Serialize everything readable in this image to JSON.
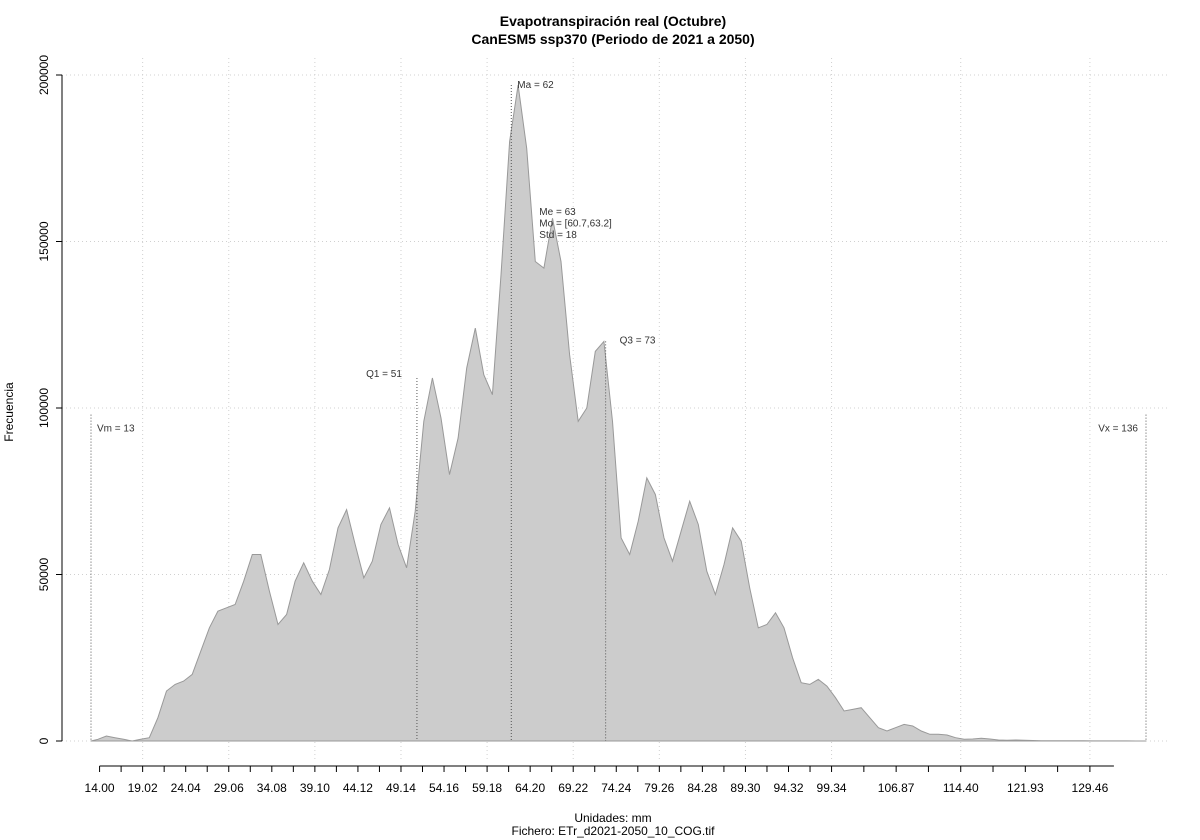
{
  "title": "Evapotranspiración real (Octubre)",
  "subtitle": "CanESM5 ssp370 (Periodo de 2021 a 2050)",
  "chart_data": {
    "type": "area",
    "title": "Evapotranspiración real (Octubre)",
    "subtitle": "CanESM5 ssp370 (Periodo de 2021 a 2050)",
    "xlabel": "Unidades: mm",
    "file_label": "Fichero: ETr_d2021-2050_10_COG.tif",
    "ylabel": "Frecuencia",
    "xlim": [
      12.0,
      137.0
    ],
    "ylim": [
      0,
      200000
    ],
    "grid": true,
    "fill_color": "#cccccc",
    "line_color": "#999999",
    "x_tick_values": [
      14.0,
      19.02,
      24.04,
      29.06,
      34.08,
      39.1,
      44.12,
      49.14,
      54.16,
      59.18,
      64.2,
      69.22,
      74.24,
      79.26,
      84.28,
      89.3,
      94.32,
      99.34,
      106.87,
      114.4,
      121.93,
      129.46
    ],
    "x_tick_labels": [
      "14.00",
      "19.02",
      "24.04",
      "29.06",
      "34.08",
      "39.10",
      "44.12",
      "49.14",
      "54.16",
      "59.18",
      "64.20",
      "69.22",
      "74.24",
      "79.26",
      "84.28",
      "89.30",
      "94.32",
      "99.34",
      "106.87",
      "114.40",
      "121.93",
      "129.46"
    ],
    "y_ticks": [
      0,
      50000,
      100000,
      150000,
      200000
    ],
    "y_tick_labels": [
      "0",
      "50000",
      "100000",
      "150000",
      "200000"
    ],
    "series": [
      {
        "x": [
          13.0,
          13.8,
          14.8,
          15.8,
          16.8,
          17.8,
          18.8,
          19.8,
          20.8,
          21.8,
          22.8,
          23.8,
          24.8,
          25.8,
          26.8,
          27.8,
          28.8,
          29.8,
          30.8,
          31.8,
          32.8,
          33.8,
          34.8,
          35.8,
          36.8,
          37.8,
          38.8,
          39.8,
          40.8,
          41.8,
          42.8,
          43.8,
          44.8,
          45.8,
          46.8,
          47.8,
          48.8,
          49.8,
          50.8,
          51.8,
          52.8,
          53.8,
          54.8,
          55.8,
          56.8,
          57.8,
          58.8,
          59.8,
          60.8,
          61.8,
          62.8,
          63.8,
          64.8,
          65.8,
          66.8,
          67.8,
          68.8,
          69.8,
          70.8,
          71.8,
          72.8,
          73.8,
          74.8,
          75.8,
          76.8,
          77.8,
          78.8,
          79.8,
          80.8,
          81.8,
          82.8,
          83.8,
          84.8,
          85.8,
          86.8,
          87.8,
          88.8,
          89.8,
          90.8,
          91.8,
          92.8,
          93.8,
          94.8,
          95.8,
          96.8,
          97.8,
          98.8,
          99.8,
          100.8,
          101.8,
          102.8,
          103.8,
          104.8,
          105.8,
          106.8,
          107.8,
          108.8,
          109.8,
          110.8,
          111.8,
          112.8,
          113.8,
          114.8,
          115.8,
          116.8,
          117.8,
          118.8,
          119.8,
          120.8,
          121.8,
          122.8,
          123.8,
          124.8,
          125.8,
          126.8,
          127.8,
          128.8,
          129.8,
          130.8,
          131.8,
          132.8,
          133.8,
          134.8,
          136.0
        ],
        "y": [
          0,
          500,
          1500,
          1000,
          500,
          0,
          500,
          1000,
          7000,
          15000,
          17000,
          18000,
          20000,
          27000,
          34000,
          39000,
          40000,
          41000,
          48000,
          56000,
          56000,
          45000,
          35000,
          38000,
          48000,
          53500,
          48000,
          44000,
          51500,
          64000,
          69500,
          59000,
          49000,
          54000,
          65000,
          70000,
          59000,
          52000,
          69000,
          96000,
          109000,
          97000,
          80000,
          91000,
          112000,
          124000,
          110000,
          104000,
          140000,
          180000,
          197000,
          178000,
          144000,
          142000,
          157000,
          144000,
          116000,
          96000,
          100000,
          117000,
          120000,
          96000,
          61000,
          56000,
          66000,
          79000,
          74000,
          61000,
          54000,
          63000,
          72000,
          65000,
          51000,
          44000,
          53000,
          64000,
          60000,
          46000,
          34000,
          35000,
          38500,
          34000,
          25000,
          17500,
          17000,
          18500,
          16500,
          13000,
          9000,
          9500,
          10000,
          7000,
          4000,
          3000,
          4000,
          5000,
          4500,
          3000,
          2000,
          2000,
          1800,
          1000,
          500,
          600,
          800,
          600,
          300,
          200,
          300,
          200,
          150,
          100,
          50,
          50,
          50,
          50,
          50,
          30,
          20,
          20,
          20,
          20,
          10,
          0
        ]
      }
    ],
    "annotations": [
      {
        "label": "Vm = 13",
        "x": 13,
        "y_top": 98000,
        "line": true
      },
      {
        "label": "Q1 = 51",
        "x": 51,
        "y_top": 109000,
        "line": true
      },
      {
        "label": "Ma = 62",
        "x": 62,
        "y_top": 197000,
        "line": true
      },
      {
        "label": "Me = 63",
        "x": 62,
        "y_top": 158000,
        "line": false
      },
      {
        "label": "Mo = [60.7,63.2]",
        "x": 62,
        "y_top": 154500,
        "line": false
      },
      {
        "label": "Std = 18",
        "x": 62,
        "y_top": 151000,
        "line": false
      },
      {
        "label": "Q3 = 73",
        "x": 73,
        "y_top": 120000,
        "line": true
      },
      {
        "label": "Vx = 136",
        "x": 136,
        "y_top": 98000,
        "line": true
      }
    ]
  }
}
